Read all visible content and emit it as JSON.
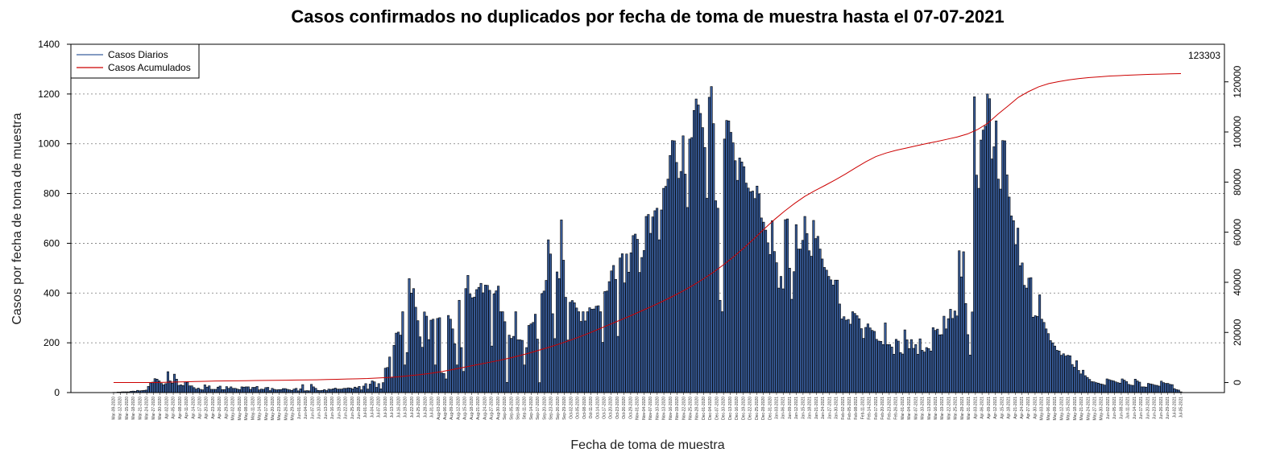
{
  "chart_data": {
    "type": "bar",
    "title": "Casos confirmados no duplicados por fecha de toma de muestra hasta el 07-07-2021",
    "xlabel": "Fecha de toma de muestra",
    "ylabel": "Casos por fecha de toma de muestra",
    "ylim": [
      0,
      1400
    ],
    "y_ticks": [
      0,
      200,
      400,
      600,
      800,
      1000,
      1200,
      1400
    ],
    "y2lim": [
      -4000,
      135000
    ],
    "y2_ticks": [
      0,
      20000,
      40000,
      60000,
      80000,
      100000,
      120000
    ],
    "x_start": "2020-03-09",
    "x_end": "2021-07-07",
    "x_tick_labels": [
      "Mar-09-2020",
      "Mar-12-2020",
      "Mar-15-2020",
      "Mar-18-2020",
      "Mar-21-2020",
      "Mar-24-2020",
      "Mar-27-2020",
      "Mar-30-2020",
      "Apr-02-2020",
      "Apr-05-2020",
      "Apr-08-2020",
      "Apr-11-2020",
      "Apr-14-2020",
      "Apr-17-2020",
      "Apr-20-2020",
      "Apr-23-2020",
      "Apr-26-2020",
      "Apr-29-2020",
      "May-02-2020",
      "May-05-2020",
      "May-08-2020",
      "May-11-2020",
      "May-14-2020",
      "May-17-2020",
      "May-20-2020",
      "May-23-2020",
      "May-26-2020",
      "May-29-2020",
      "Jun-01-2020",
      "Jun-04-2020",
      "Jun-07-2020",
      "Jun-10-2020",
      "Jun-13-2020",
      "Jun-16-2020",
      "Jun-19-2020",
      "Jun-22-2020",
      "Jun-25-2020",
      "Jun-28-2020",
      "Jul-01-2020",
      "Jul-04-2020",
      "Jul-07-2020",
      "Jul-10-2020",
      "Jul-13-2020",
      "Jul-16-2020",
      "Jul-19-2020",
      "Jul-22-2020",
      "Jul-25-2020",
      "Jul-28-2020",
      "Jul-31-2020",
      "Aug-03-2020",
      "Aug-06-2020",
      "Aug-09-2020",
      "Aug-12-2020",
      "Aug-15-2020",
      "Aug-18-2020",
      "Aug-21-2020",
      "Aug-24-2020",
      "Aug-27-2020",
      "Aug-30-2020",
      "Sep-02-2020",
      "Sep-05-2020",
      "Sep-08-2020",
      "Sep-11-2020",
      "Sep-14-2020",
      "Sep-17-2020",
      "Sep-20-2020",
      "Sep-23-2020",
      "Sep-26-2020",
      "Sep-29-2020",
      "Oct-02-2020",
      "Oct-05-2020",
      "Oct-08-2020",
      "Oct-11-2020",
      "Oct-14-2020",
      "Oct-17-2020",
      "Oct-20-2020",
      "Oct-23-2020",
      "Oct-26-2020",
      "Oct-29-2020",
      "Nov-01-2020",
      "Nov-04-2020",
      "Nov-07-2020",
      "Nov-10-2020",
      "Nov-13-2020",
      "Nov-16-2020",
      "Nov-19-2020",
      "Nov-22-2020",
      "Nov-25-2020",
      "Nov-28-2020",
      "Dec-01-2020",
      "Dec-04-2020",
      "Dec-07-2020",
      "Dec-10-2020",
      "Dec-13-2020",
      "Dec-16-2020",
      "Dec-19-2020",
      "Dec-22-2020",
      "Dec-25-2020",
      "Dec-28-2020",
      "Dec-31-2020",
      "Jan-03-2021",
      "Jan-06-2021",
      "Jan-09-2021",
      "Jan-12-2021",
      "Jan-15-2021",
      "Jan-18-2021",
      "Jan-21-2021",
      "Jan-24-2021",
      "Jan-27-2021",
      "Jan-30-2021",
      "Feb-02-2021",
      "Feb-05-2021",
      "Feb-08-2021",
      "Feb-11-2021",
      "Feb-14-2021",
      "Feb-17-2021",
      "Feb-20-2021",
      "Feb-23-2021",
      "Feb-26-2021",
      "Mar-01-2021",
      "Mar-04-2021",
      "Mar-07-2021",
      "Mar-10-2021",
      "Mar-13-2021",
      "Mar-16-2021",
      "Mar-19-2021",
      "Mar-22-2021",
      "Mar-25-2021",
      "Mar-28-2021",
      "Mar-31-2021",
      "Apr-03-2021",
      "Apr-06-2021",
      "Apr-09-2021",
      "Apr-12-2021",
      "Apr-15-2021",
      "Apr-18-2021",
      "Apr-21-2021",
      "Apr-24-2021",
      "Apr-27-2021",
      "Apr-30-2021",
      "May-03-2021",
      "May-06-2021",
      "May-09-2021",
      "May-12-2021",
      "May-15-2021",
      "May-18-2021",
      "May-21-2021",
      "May-24-2021",
      "May-27-2021",
      "May-30-2021",
      "Jun-02-2021",
      "Jun-05-2021",
      "Jun-08-2021",
      "Jun-11-2021",
      "Jun-14-2021",
      "Jun-17-2021",
      "Jun-20-2021",
      "Jun-23-2021",
      "Jun-26-2021",
      "Jun-29-2021",
      "Jul-02-2021",
      "Jul-05-2021"
    ],
    "grid": true,
    "legend_position": "top-left",
    "series": [
      {
        "name": "Casos Diarios",
        "color": "#3a5f9e",
        "type": "bar",
        "values": [
          1,
          1,
          2,
          2,
          3,
          3,
          3,
          3,
          5,
          6,
          5,
          9,
          7,
          8,
          9,
          10,
          25,
          39,
          42,
          56,
          54,
          47,
          37,
          31,
          36,
          84,
          47,
          38,
          74,
          54,
          29,
          31,
          28,
          43,
          42,
          27,
          27,
          20,
          14,
          18,
          13,
          11,
          31,
          22,
          27,
          13,
          13,
          13,
          22,
          26,
          12,
          12,
          24,
          17,
          23,
          17,
          17,
          14,
          12,
          23,
          22,
          23,
          23,
          13,
          21,
          21,
          25,
          11,
          14,
          13,
          20,
          21,
          8,
          17,
          13,
          11,
          12,
          12,
          16,
          16,
          13,
          11,
          9,
          14,
          17,
          7,
          15,
          32,
          7,
          8,
          7,
          33,
          23,
          17,
          9,
          8,
          9,
          12,
          8,
          14,
          13,
          15,
          18,
          14,
          14,
          14,
          17,
          17,
          19,
          18,
          15,
          22,
          19,
          25,
          11,
          26,
          36,
          14,
          34,
          47,
          43,
          21,
          36,
          15,
          40,
          98,
          101,
          143,
          62,
          190,
          239,
          243,
          231,
          325,
          111,
          161,
          458,
          400,
          418,
          343,
          289,
          224,
          182,
          324,
          307,
          213,
          291,
          295,
          111,
          298,
          301,
          79,
          77,
          55,
          310,
          295,
          256,
          196,
          111,
          371,
          181,
          85,
          418,
          471,
          396,
          381,
          384,
          414,
          423,
          439,
          401,
          432,
          431,
          411,
          187,
          397,
          409,
          428,
          325,
          325,
          285,
          41,
          231,
          218,
          226,
          325,
          212,
          212,
          210,
          111,
          181,
          270,
          276,
          282,
          315,
          215,
          40,
          398,
          408,
          451,
          614,
          557,
          317,
          217,
          485,
          458,
          694,
          532,
          383,
          211,
          363,
          370,
          361,
          340,
          325,
          286,
          325,
          288,
          325,
          341,
          335,
          336,
          347,
          349,
          325,
          202,
          406,
          408,
          446,
          489,
          511,
          455,
          226,
          541,
          558,
          441,
          557,
          484,
          562,
          631,
          637,
          616,
          483,
          543,
          571,
          708,
          716,
          640,
          706,
          731,
          741,
          614,
          734,
          821,
          829,
          858,
          953,
          1013,
          1012,
          925,
          861,
          889,
          1032,
          878,
          744,
          1019,
          1025,
          1134,
          1180,
          1156,
          1122,
          1065,
          985,
          781,
          1187,
          1230,
          1081,
          771,
          741,
          371,
          325,
          1019,
          1094,
          1092,
          1046,
          1004,
          932,
          853,
          943,
          927,
          908,
          842,
          822,
          807,
          810,
          780,
          830,
          799,
          702,
          685,
          653,
          602,
          555,
          691,
          567,
          522,
          420,
          467,
          417,
          695,
          698,
          500,
          375,
          486,
          675,
          577,
          577,
          612,
          708,
          639,
          570,
          548,
          692,
          619,
          628,
          577,
          537,
          503,
          492,
          467,
          453,
          432,
          452,
          452,
          356,
          296,
          305,
          291,
          294,
          275,
          325,
          318,
          309,
          297,
          257,
          218,
          262,
          276,
          260,
          250,
          246,
          214,
          207,
          206,
          193,
          280,
          193,
          193,
          183,
          154,
          214,
          207,
          161,
          155,
          252,
          212,
          177,
          213,
          178,
          193,
          154,
          216,
          170,
          163,
          181,
          177,
          167,
          261,
          250,
          255,
          232,
          233,
          307,
          256,
          297,
          335,
          298,
          328,
          308,
          570,
          465,
          566,
          358,
          233,
          151,
          324,
          1189,
          874,
          821,
          1015,
          1055,
          1071,
          1200,
          1181,
          939,
          988,
          1092,
          858,
          818,
          1013,
          1012,
          875,
          786,
          710,
          691,
          595,
          661,
          510,
          521,
          431,
          420,
          460,
          462,
          303,
          309,
          306,
          393,
          295,
          282,
          256,
          237,
          209,
          200,
          187,
          170,
          167,
          150,
          156,
          147,
          150,
          148,
          113,
          102,
          128,
          89,
          75,
          90,
          68,
          61,
          53,
          44,
          43,
          40,
          38,
          35,
          33,
          30,
          55,
          52,
          49,
          47,
          43,
          40,
          38,
          55,
          50,
          44,
          33,
          30,
          29,
          54,
          47,
          42,
          23,
          23,
          22,
          37,
          35,
          33,
          30,
          29,
          26,
          46,
          40,
          37,
          37,
          33,
          32,
          16,
          12,
          10,
          3
        ]
      },
      {
        "name": "Casos Acumulados",
        "color": "#cc0000",
        "type": "line",
        "final_value": 123303,
        "values": [
          0,
          0,
          0,
          0,
          0,
          100,
          200,
          300,
          400,
          500,
          600,
          650,
          700,
          750,
          800,
          850,
          900,
          950,
          1000,
          1050,
          1100,
          1200,
          1300,
          1400,
          1500,
          1600,
          1800,
          2000,
          2300,
          2700,
          3100,
          3600,
          4200,
          4900,
          5700,
          6500,
          7300,
          8100,
          8900,
          9800,
          10800,
          11900,
          13100,
          14300,
          15600,
          17000,
          18500,
          20100,
          21800,
          23500,
          25200,
          26900,
          28700,
          30500,
          32400,
          34400,
          36500,
          38800,
          41300,
          44000,
          47000,
          50200,
          53700,
          57400,
          61300,
          65000,
          68400,
          71500,
          74300,
          76600,
          78700,
          80900,
          83200,
          85700,
          88100,
          90200,
          91600,
          92700,
          93600,
          94500,
          95400,
          96200,
          97100,
          98000,
          99200,
          101000,
          103500,
          107100,
          110400,
          113800,
          116100,
          118000,
          119300,
          120100,
          120800,
          121300,
          121700,
          122000,
          122300,
          122500,
          122700,
          122850,
          123000,
          123100,
          123200,
          123303
        ]
      }
    ],
    "end_label": "123303"
  }
}
